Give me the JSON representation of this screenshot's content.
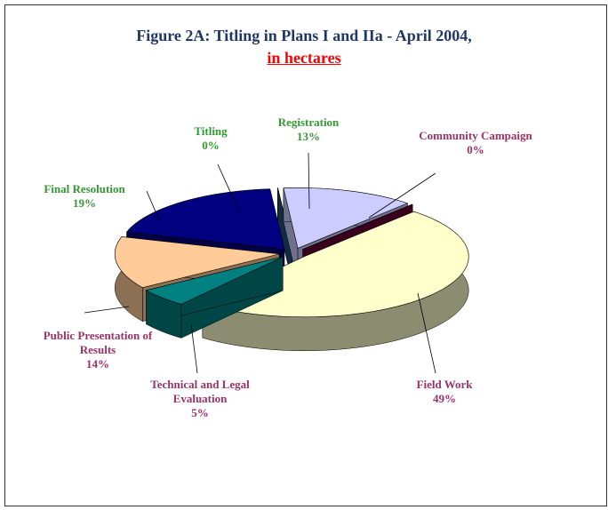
{
  "chart_data": {
    "type": "pie3d",
    "title": "Figure 2A: Titling in Plans I and IIa - April 2004,",
    "subtitle": "in hectares",
    "categories": [
      "Titling",
      "Registration",
      "Community Campaign",
      "Field Work",
      "Technical and Legal Evaluation",
      "Public Presentation of Results",
      "Final Resolution"
    ],
    "values": [
      0,
      13,
      0,
      49,
      5,
      14,
      19
    ],
    "value_labels": [
      "0%",
      "13%",
      "0%",
      "49%",
      "5%",
      "14%",
      "19%"
    ],
    "colors": [
      "#1f4e79",
      "#ccccff",
      "#660033",
      "#ffffcc",
      "#008080",
      "#ffcc99",
      "#000080"
    ],
    "label_colors": [
      "#339933",
      "#339933",
      "#993366",
      "#993366",
      "#993366",
      "#993366",
      "#339933"
    ]
  }
}
